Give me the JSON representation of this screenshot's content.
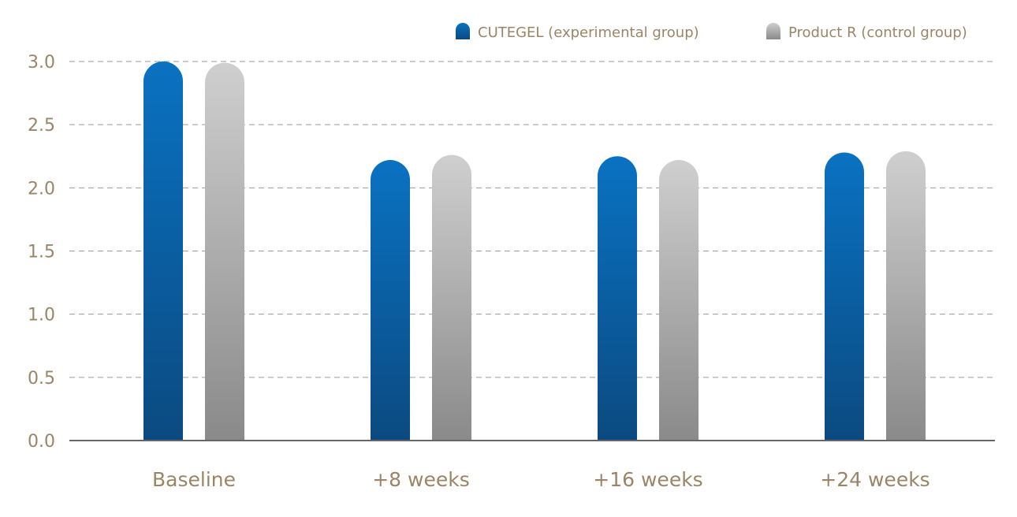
{
  "chart_data": {
    "type": "bar",
    "categories": [
      "Baseline",
      "+8 weeks",
      "+16 weeks",
      "+24 weeks"
    ],
    "series": [
      {
        "name": "CUTEGEL (experimental group)",
        "values": [
          3.0,
          2.22,
          2.25,
          2.28
        ],
        "color_top": "#0a72c2",
        "color_bottom": "#0b4a80"
      },
      {
        "name": "Product R (control group)",
        "values": [
          2.99,
          2.26,
          2.22,
          2.29
        ],
        "color_top": "#cfcfcf",
        "color_bottom": "#8a8a8a"
      }
    ],
    "ylim": [
      0,
      3.0
    ],
    "yticks": [
      "0.0",
      "0.5",
      "1.0",
      "1.5",
      "2.0",
      "2.5",
      "3.0"
    ],
    "title": "",
    "xlabel": "",
    "ylabel": "",
    "grid": true,
    "legend_position": "top-right",
    "text_color": "#9b8566"
  }
}
